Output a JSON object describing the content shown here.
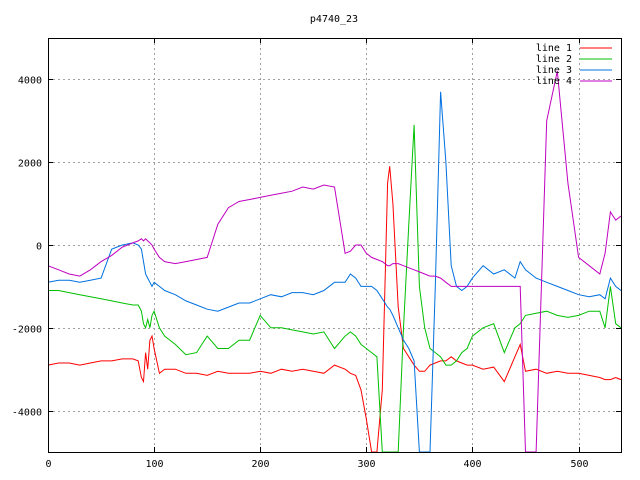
{
  "chart_data": {
    "type": "line",
    "title": "p4740_23",
    "xlabel": "",
    "ylabel": "",
    "xlim": [
      0,
      540
    ],
    "ylim": [
      -5000,
      5000
    ],
    "x_ticks": [
      0,
      100,
      200,
      300,
      400,
      500
    ],
    "y_ticks": [
      -4000,
      -2000,
      0,
      2000,
      4000
    ],
    "x_tick_labels": [
      "0",
      "100",
      "200",
      "300",
      "400",
      "500"
    ],
    "y_tick_labels": [
      "-4000",
      "-2000",
      "0",
      "2000",
      "4000"
    ],
    "grid": true,
    "legend_position": "top-right",
    "x": [
      0,
      10,
      20,
      30,
      40,
      50,
      60,
      70,
      80,
      85,
      88,
      90,
      92,
      94,
      96,
      98,
      100,
      105,
      110,
      120,
      130,
      140,
      150,
      160,
      170,
      180,
      190,
      200,
      210,
      220,
      230,
      240,
      250,
      260,
      270,
      280,
      285,
      290,
      295,
      300,
      305,
      310,
      315,
      320,
      322,
      325,
      330,
      335,
      340,
      345,
      350,
      355,
      360,
      365,
      370,
      375,
      380,
      385,
      390,
      395,
      400,
      410,
      420,
      430,
      440,
      445,
      450,
      460,
      470,
      480,
      490,
      500,
      510,
      520,
      525,
      530,
      535,
      540
    ],
    "series": [
      {
        "name": "line 1",
        "color": "#ff0000",
        "values": [
          -2900,
          -2850,
          -2850,
          -2900,
          -2850,
          -2800,
          -2800,
          -2750,
          -2750,
          -2800,
          -3200,
          -3300,
          -2600,
          -3000,
          -2300,
          -2200,
          -2500,
          -3100,
          -3000,
          -3000,
          -3100,
          -3100,
          -3150,
          -3050,
          -3100,
          -3100,
          -3100,
          -3050,
          -3100,
          -3000,
          -3050,
          -3000,
          -3050,
          -3100,
          -2900,
          -3000,
          -3100,
          -3150,
          -3500,
          -4200,
          -5000,
          -5000,
          -3500,
          1500,
          1900,
          1000,
          -1500,
          -2500,
          -2700,
          -2900,
          -3050,
          -3050,
          -2900,
          -2850,
          -2800,
          -2800,
          -2700,
          -2800,
          -2850,
          -2900,
          -2900,
          -3000,
          -2950,
          -3300,
          -2700,
          -2400,
          -3050,
          -3000,
          -3100,
          -3050,
          -3100,
          -3100,
          -3150,
          -3200,
          -3250,
          -3250,
          -3200,
          -3250
        ]
      },
      {
        "name": "line 2",
        "color": "#00c000",
        "values": [
          -1100,
          -1100,
          -1150,
          -1200,
          -1250,
          -1300,
          -1350,
          -1400,
          -1450,
          -1450,
          -1600,
          -1900,
          -2000,
          -1800,
          -2000,
          -1700,
          -1600,
          -2000,
          -2200,
          -2400,
          -2650,
          -2600,
          -2200,
          -2500,
          -2500,
          -2300,
          -2300,
          -1700,
          -2000,
          -2000,
          -2050,
          -2100,
          -2150,
          -2100,
          -2500,
          -2200,
          -2100,
          -2200,
          -2400,
          -2500,
          -2600,
          -2700,
          -5000,
          -5000,
          -5000,
          -5000,
          -5000,
          -2000,
          500,
          2900,
          -1000,
          -2000,
          -2500,
          -2600,
          -2700,
          -2900,
          -2900,
          -2800,
          -2600,
          -2500,
          -2200,
          -2000,
          -1900,
          -2600,
          -2000,
          -1900,
          -1700,
          -1650,
          -1600,
          -1700,
          -1750,
          -1700,
          -1600,
          -1600,
          -2000,
          -1000,
          -1900,
          -2000
        ]
      },
      {
        "name": "line 3",
        "color": "#0070e0",
        "values": [
          -900,
          -850,
          -850,
          -900,
          -850,
          -800,
          -100,
          0,
          50,
          0,
          -100,
          -400,
          -700,
          -800,
          -900,
          -1000,
          -900,
          -1000,
          -1100,
          -1200,
          -1350,
          -1450,
          -1550,
          -1600,
          -1500,
          -1400,
          -1400,
          -1300,
          -1200,
          -1250,
          -1150,
          -1150,
          -1200,
          -1100,
          -900,
          -900,
          -700,
          -800,
          -1000,
          -1000,
          -1000,
          -1100,
          -1300,
          -1500,
          -1550,
          -1700,
          -2000,
          -2300,
          -2500,
          -2800,
          -5000,
          -5000,
          -5000,
          -1000,
          3700,
          2000,
          -500,
          -1000,
          -1100,
          -1000,
          -800,
          -500,
          -700,
          -600,
          -800,
          -400,
          -600,
          -800,
          -900,
          -1000,
          -1100,
          -1200,
          -1250,
          -1200,
          -1300,
          -800,
          -1000,
          -1100
        ]
      },
      {
        "name": "line 4",
        "color": "#c000c0",
        "values": [
          -500,
          -600,
          -700,
          -750,
          -600,
          -400,
          -250,
          -50,
          50,
          100,
          150,
          100,
          150,
          100,
          50,
          0,
          -100,
          -300,
          -400,
          -450,
          -400,
          -350,
          -300,
          500,
          900,
          1050,
          1100,
          1150,
          1200,
          1250,
          1300,
          1400,
          1350,
          1450,
          1400,
          -200,
          -150,
          0,
          0,
          -200,
          -300,
          -350,
          -400,
          -500,
          -500,
          -450,
          -450,
          -500,
          -550,
          -600,
          -650,
          -700,
          -750,
          -750,
          -800,
          -900,
          -1000,
          -1000,
          -1000,
          -1000,
          -1000,
          -1000,
          -1000,
          -1000,
          -1000,
          -1000,
          -5000,
          -5000,
          3000,
          4200,
          1500,
          -300,
          -500,
          -700,
          -200,
          800,
          600,
          700
        ]
      }
    ]
  }
}
